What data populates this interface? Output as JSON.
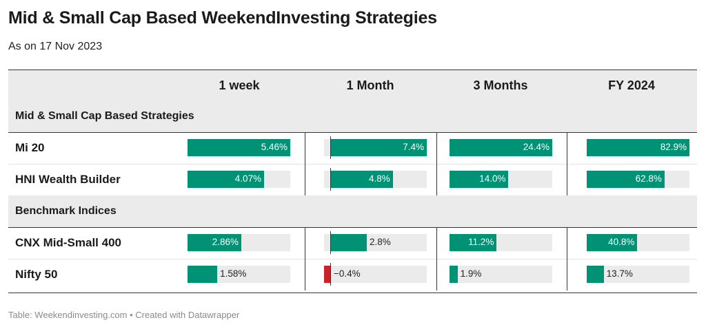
{
  "title": "Mid & Small Cap Based WeekendInvesting Strategies",
  "subtitle": "As on 17 Nov 2023",
  "footer": "Table: Weekendinvesting.com • Created with Datawrapper",
  "colors": {
    "positive": "#009274",
    "negative": "#c8232a",
    "track": "#ebebeb",
    "header_bg": "#ebebeb"
  },
  "chart_data": {
    "type": "table",
    "columns": [
      "1 week",
      "1 Month",
      "3 Months",
      "FY 2024"
    ],
    "column_scale_max": [
      5.46,
      7.4,
      24.4,
      82.9
    ],
    "groups": [
      {
        "name": "Mid & Small Cap Based Strategies",
        "rows": [
          {
            "label": "Mi 20",
            "values": [
              5.46,
              7.4,
              24.4,
              82.9
            ],
            "display": [
              "5.46%",
              "7.4%",
              "24.4%",
              "82.9%"
            ]
          },
          {
            "label": "HNI Wealth Builder",
            "values": [
              4.07,
              4.8,
              14.0,
              62.8
            ],
            "display": [
              "4.07%",
              "4.8%",
              "14.0%",
              "62.8%"
            ]
          }
        ]
      },
      {
        "name": "Benchmark Indices",
        "rows": [
          {
            "label": "CNX Mid-Small 400",
            "values": [
              2.86,
              2.8,
              11.2,
              40.8
            ],
            "display": [
              "2.86%",
              "2.8%",
              "11.2%",
              "40.8%"
            ]
          },
          {
            "label": "Nifty 50",
            "values": [
              1.58,
              -0.4,
              1.9,
              13.7
            ],
            "display": [
              "1.58%",
              "−0.4%",
              "1.9%",
              "13.7%"
            ]
          }
        ]
      }
    ]
  }
}
